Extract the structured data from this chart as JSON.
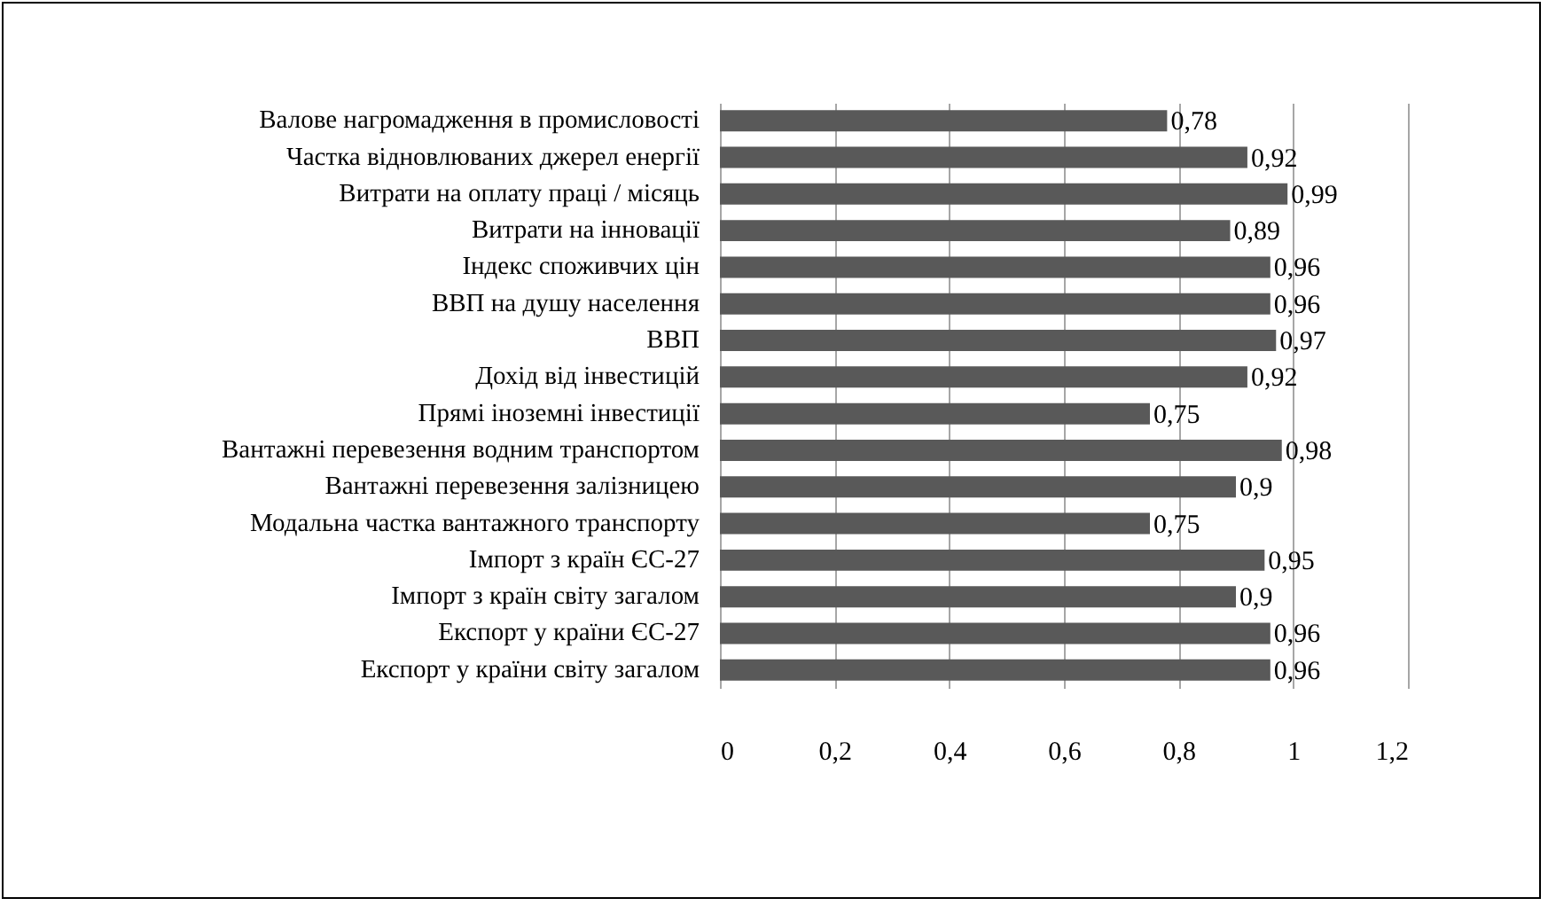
{
  "chart_data": {
    "type": "bar",
    "orientation": "horizontal",
    "categories": [
      "Валове нагромадження в промисловості",
      "Частка відновлюваних джерел енергії ",
      "Витрати на оплату праці / місяць",
      "Витрати на інновації",
      "Індекс споживчих цін",
      "ВВП на душу населення",
      "ВВП",
      "Дохід від інвестицій",
      "Прямі іноземні інвестиції",
      "Вантажні перевезення водним транспортом",
      "Вантажні перевезення залізницею",
      "Модальна частка вантажного транспорту",
      "Імпорт з країн  ЄС-27",
      "Імпорт з країн світу загалом",
      "Експорт у країни ЄС-27",
      "Експорт у країни світу загалом"
    ],
    "values": [
      0.78,
      0.92,
      0.99,
      0.89,
      0.96,
      0.96,
      0.97,
      0.92,
      0.75,
      0.98,
      0.9,
      0.75,
      0.95,
      0.9,
      0.96,
      0.96
    ],
    "value_labels": [
      "0,78",
      "0,92",
      "0,99",
      "0,89",
      "0,96",
      "0,96",
      "0,97",
      "0,92",
      "0,75",
      "0,98",
      "0,9",
      "0,75",
      "0,95",
      "0,9",
      "0,96",
      "0,96"
    ],
    "color": "#595959",
    "xlim": [
      0,
      1.2
    ],
    "xticks": [
      0,
      {
        "value": 0.2,
        "label": "0,2"
      },
      {
        "value": 0.4,
        "label": "0,4"
      },
      {
        "value": 0.6,
        "label": "0,6"
      },
      {
        "value": 0.8,
        "label": "0,8"
      },
      1,
      {
        "value": 1.2,
        "label": "1,2"
      }
    ],
    "grid": "x"
  }
}
